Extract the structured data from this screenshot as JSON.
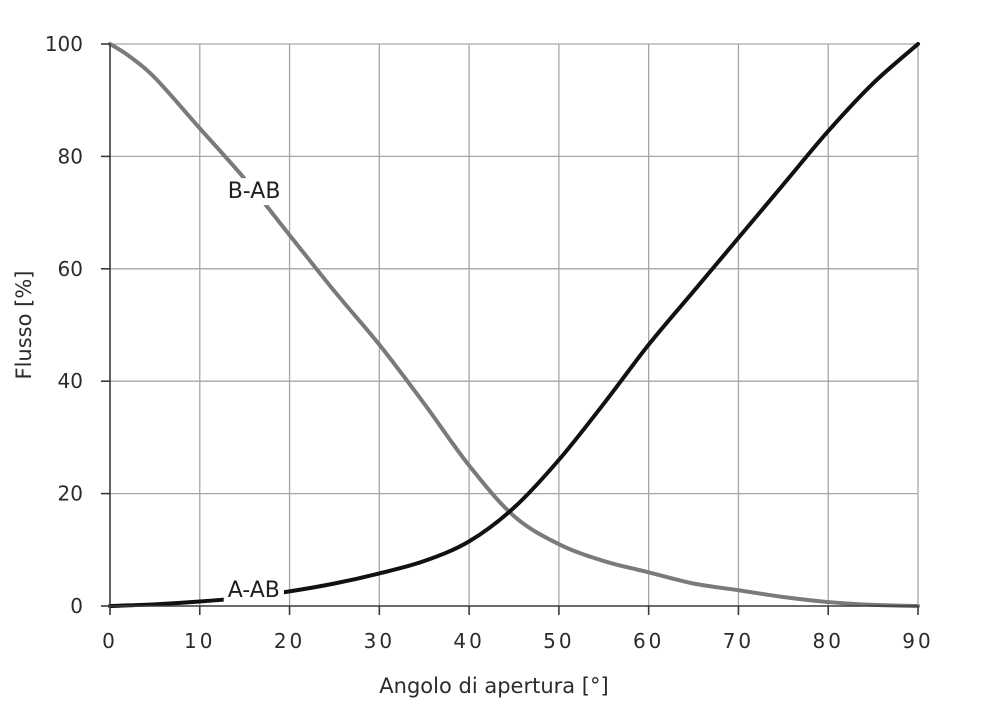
{
  "chart_data": {
    "type": "line",
    "xlabel": "Angolo di apertura [°]",
    "ylabel": "Flusso [%]",
    "xlim": [
      0,
      90
    ],
    "ylim": [
      0,
      100
    ],
    "x_ticks": [
      0,
      10,
      20,
      30,
      40,
      50,
      60,
      70,
      80,
      90
    ],
    "y_ticks": [
      0,
      20,
      40,
      60,
      80,
      100
    ],
    "x_tick_labels": [
      "0",
      "10",
      "20",
      "30",
      "40",
      "50",
      "60",
      "70",
      "80",
      "90"
    ],
    "y_tick_labels": [
      "0",
      "20",
      "40",
      "60",
      "80",
      "100"
    ],
    "grid": true,
    "series": [
      {
        "name": "B-AB",
        "color": "#7a7a7a",
        "label_at": [
          12,
          74
        ],
        "points": [
          [
            0,
            100
          ],
          [
            2,
            98
          ],
          [
            5,
            94
          ],
          [
            10,
            85
          ],
          [
            15,
            76
          ],
          [
            20,
            66
          ],
          [
            25,
            56
          ],
          [
            30,
            46.5
          ],
          [
            35,
            36
          ],
          [
            40,
            25
          ],
          [
            45,
            16
          ],
          [
            50,
            11
          ],
          [
            55,
            8
          ],
          [
            60,
            6
          ],
          [
            65,
            4
          ],
          [
            70,
            2.8
          ],
          [
            75,
            1.6
          ],
          [
            80,
            0.7
          ],
          [
            85,
            0.2
          ],
          [
            90,
            0
          ]
        ]
      },
      {
        "name": "A-AB",
        "color": "#111111",
        "label_at": [
          12,
          3
        ],
        "points": [
          [
            0,
            0
          ],
          [
            5,
            0.3
          ],
          [
            10,
            0.8
          ],
          [
            15,
            1.5
          ],
          [
            20,
            2.6
          ],
          [
            25,
            4
          ],
          [
            30,
            5.8
          ],
          [
            35,
            8
          ],
          [
            40,
            11.5
          ],
          [
            45,
            17.5
          ],
          [
            50,
            26
          ],
          [
            55,
            36
          ],
          [
            60,
            46.5
          ],
          [
            65,
            56
          ],
          [
            70,
            65.5
          ],
          [
            75,
            75
          ],
          [
            80,
            84.5
          ],
          [
            85,
            93
          ],
          [
            90,
            100
          ]
        ]
      }
    ]
  }
}
